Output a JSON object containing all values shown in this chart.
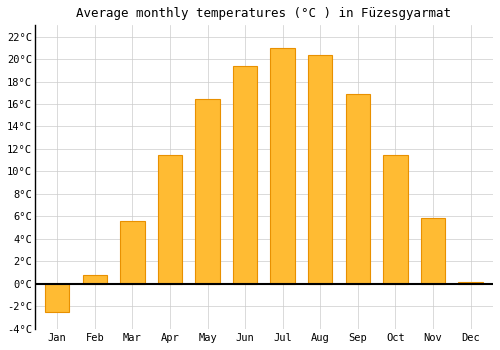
{
  "title": "Average monthly temperatures (°C ) in Füzesgyarmat",
  "months": [
    "Jan",
    "Feb",
    "Mar",
    "Apr",
    "May",
    "Jun",
    "Jul",
    "Aug",
    "Sep",
    "Oct",
    "Nov",
    "Dec"
  ],
  "values": [
    -2.5,
    0.8,
    5.6,
    11.5,
    16.4,
    19.4,
    21.0,
    20.4,
    16.9,
    11.5,
    5.9,
    0.2
  ],
  "bar_color_face": "#FFBB33",
  "bar_color_edge": "#E89000",
  "ylim": [
    -4,
    23
  ],
  "yticks": [
    -4,
    -2,
    0,
    2,
    4,
    6,
    8,
    10,
    12,
    14,
    16,
    18,
    20,
    22
  ],
  "ytick_labels": [
    "-4°C",
    "-2°C",
    "0°C",
    "2°C",
    "4°C",
    "6°C",
    "8°C",
    "10°C",
    "12°C",
    "14°C",
    "16°C",
    "18°C",
    "20°C",
    "22°C"
  ],
  "background_color": "#ffffff",
  "plot_bg_color": "#ffffff",
  "grid_color": "#cccccc",
  "title_fontsize": 9,
  "tick_fontsize": 7.5,
  "bar_width": 0.65
}
